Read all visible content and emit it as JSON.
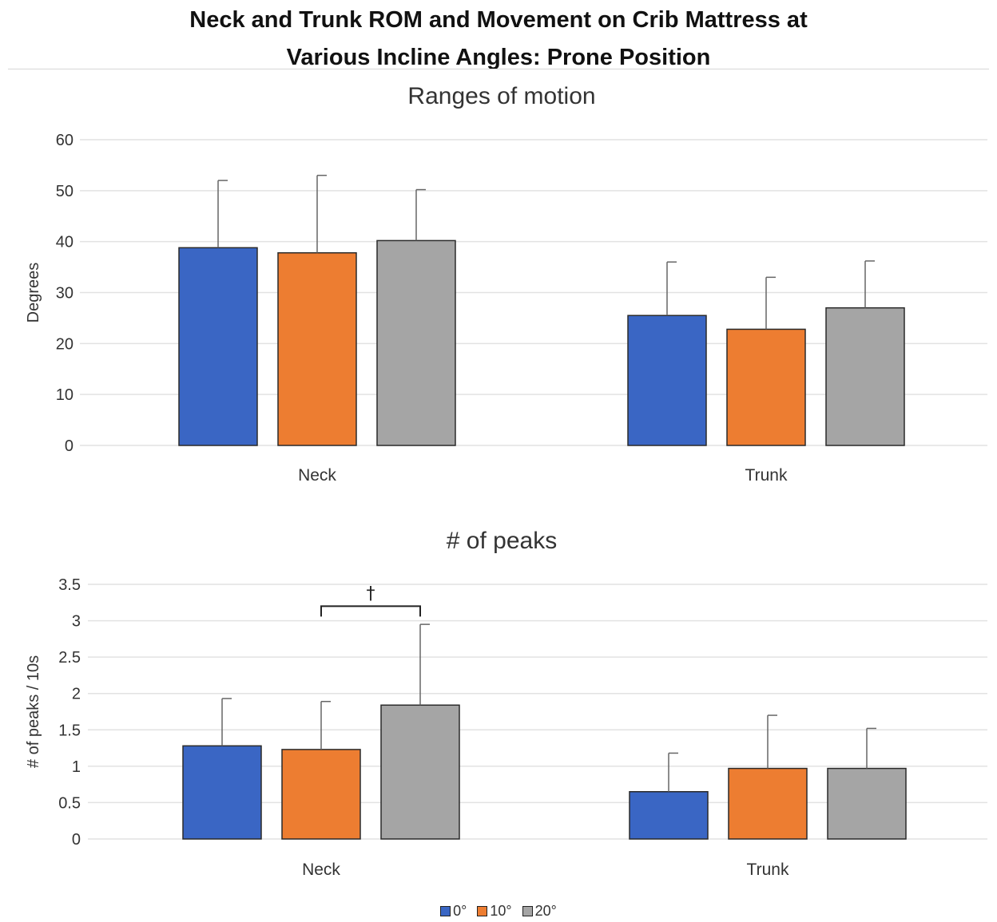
{
  "title_line1": "Neck and Trunk ROM and Movement on Crib Mattress at",
  "title_line2": "Various Incline Angles: Prone Position",
  "colors": {
    "0deg": "#3a66c4",
    "10deg": "#ed7d31",
    "20deg": "#a5a5a5",
    "grid": "#e2e2e2",
    "error_bar": "#666666"
  },
  "legend": [
    {
      "label": "0°",
      "color": "#3a66c4"
    },
    {
      "label": "10°",
      "color": "#ed7d31"
    },
    {
      "label": "20°",
      "color": "#a5a5a5"
    }
  ],
  "chart_data": [
    {
      "type": "bar",
      "title": "Ranges of motion",
      "xlabel": "",
      "ylabel": "Degrees",
      "ylim": [
        0,
        60
      ],
      "yticks": [
        "0",
        "10",
        "20",
        "30",
        "40",
        "50",
        "60"
      ],
      "ytick_values": [
        0,
        10,
        20,
        30,
        40,
        50,
        60
      ],
      "grid": true,
      "categories": [
        "Neck",
        "Trunk"
      ],
      "series": [
        {
          "name": "0°",
          "values": [
            38.8,
            25.5
          ],
          "errors": [
            13.2,
            10.5
          ]
        },
        {
          "name": "10°",
          "values": [
            37.8,
            22.8
          ],
          "errors": [
            15.2,
            10.2
          ]
        },
        {
          "name": "20°",
          "values": [
            40.2,
            27.0
          ],
          "errors": [
            10.0,
            9.2
          ]
        }
      ],
      "annotations": []
    },
    {
      "type": "bar",
      "title": "# of peaks",
      "xlabel": "",
      "ylabel": "# of peaks / 10s",
      "ylim": [
        0,
        3.5
      ],
      "yticks": [
        "0",
        "0.5",
        "1",
        "1.5",
        "2",
        "2.5",
        "3",
        "3.5"
      ],
      "ytick_values": [
        0,
        0.5,
        1,
        1.5,
        2,
        2.5,
        3,
        3.5
      ],
      "grid": true,
      "categories": [
        "Neck",
        "Trunk"
      ],
      "series": [
        {
          "name": "0°",
          "values": [
            1.28,
            0.65
          ],
          "errors": [
            0.65,
            0.53
          ]
        },
        {
          "name": "10°",
          "values": [
            1.23,
            0.97
          ],
          "errors": [
            0.66,
            0.73
          ]
        },
        {
          "name": "20°",
          "values": [
            1.84,
            0.97
          ],
          "errors": [
            1.11,
            0.55
          ]
        }
      ],
      "annotations": [
        {
          "text": "†",
          "category_index": 0,
          "from_series": 1,
          "to_series": 2,
          "bracket_value": 3.2
        }
      ]
    }
  ]
}
